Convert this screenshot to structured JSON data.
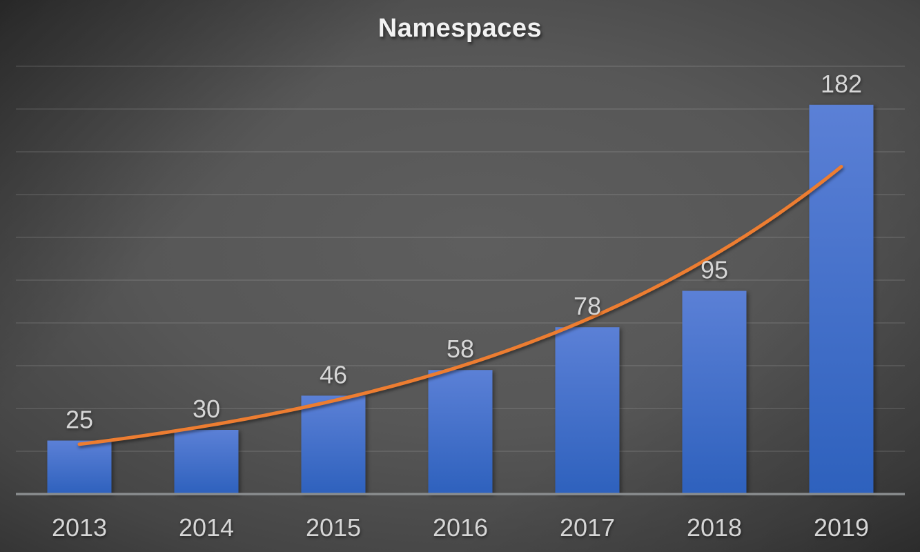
{
  "chart_data": {
    "type": "bar",
    "title": "Namespaces",
    "categories": [
      "2013",
      "2014",
      "2015",
      "2016",
      "2017",
      "2018",
      "2019"
    ],
    "values": [
      25,
      30,
      46,
      58,
      78,
      95,
      182
    ],
    "xlabel": "",
    "ylabel": "",
    "ylim": [
      0,
      200
    ],
    "grid_interval": 20,
    "grid": "horizontal-only",
    "legend": "none",
    "data_labels": "above-bars",
    "trendline": {
      "type": "exponential"
    },
    "colors": {
      "bar_top": "#5b80d6",
      "bar_bottom": "#2e61bd",
      "trendline": "#ED7D31",
      "label": "#d6d6d6",
      "title": "#f2f2f2",
      "axis_line": "#8a8d8f",
      "gridline": "rgba(255,255,255,0.13)",
      "background_center": "#5a5a5a",
      "background_edge": "#242424"
    }
  }
}
